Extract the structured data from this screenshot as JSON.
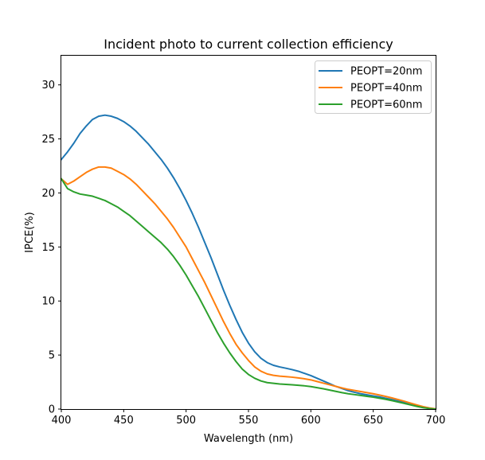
{
  "chart_data": {
    "type": "line",
    "title": "Incident photo to current collection efficiency",
    "xlabel": "Wavelength (nm)",
    "ylabel": "IPCE(%)",
    "xlim": [
      400,
      700
    ],
    "ylim": [
      0,
      32.7
    ],
    "xticks": [
      400,
      450,
      500,
      550,
      600,
      650,
      700
    ],
    "yticks": [
      0,
      5,
      10,
      15,
      20,
      25,
      30
    ],
    "grid": false,
    "legend_position": "upper right",
    "series": [
      {
        "name": "PEOPT=20nm",
        "color": "#1f77b4",
        "x": [
          400,
          405,
          410,
          415,
          420,
          425,
          430,
          435,
          440,
          445,
          450,
          455,
          460,
          465,
          470,
          475,
          480,
          485,
          490,
          495,
          500,
          505,
          510,
          515,
          520,
          525,
          530,
          535,
          540,
          545,
          550,
          555,
          560,
          565,
          570,
          575,
          580,
          585,
          590,
          595,
          600,
          605,
          610,
          615,
          620,
          625,
          630,
          635,
          640,
          645,
          650,
          655,
          660,
          665,
          670,
          675,
          680,
          685,
          690,
          695,
          700
        ],
        "y": [
          23.1,
          23.8,
          24.6,
          25.5,
          26.2,
          26.8,
          27.1,
          27.2,
          27.1,
          26.9,
          26.6,
          26.2,
          25.7,
          25.1,
          24.5,
          23.8,
          23.1,
          22.3,
          21.4,
          20.4,
          19.3,
          18.1,
          16.8,
          15.4,
          14.0,
          12.5,
          11.0,
          9.6,
          8.3,
          7.1,
          6.1,
          5.3,
          4.7,
          4.3,
          4.05,
          3.9,
          3.78,
          3.65,
          3.5,
          3.3,
          3.1,
          2.85,
          2.6,
          2.35,
          2.1,
          1.9,
          1.7,
          1.55,
          1.42,
          1.32,
          1.22,
          1.12,
          1.0,
          0.88,
          0.74,
          0.6,
          0.45,
          0.3,
          0.16,
          0.06,
          0.0
        ]
      },
      {
        "name": "PEOPT=40nm",
        "color": "#ff7f0e",
        "x": [
          400,
          405,
          410,
          415,
          420,
          425,
          430,
          435,
          440,
          445,
          450,
          455,
          460,
          465,
          470,
          475,
          480,
          485,
          490,
          495,
          500,
          505,
          510,
          515,
          520,
          525,
          530,
          535,
          540,
          545,
          550,
          555,
          560,
          565,
          570,
          575,
          580,
          585,
          590,
          595,
          600,
          605,
          610,
          615,
          620,
          625,
          630,
          635,
          640,
          645,
          650,
          655,
          660,
          665,
          670,
          675,
          680,
          685,
          690,
          695,
          700
        ],
        "y": [
          21.3,
          20.8,
          21.1,
          21.5,
          21.9,
          22.2,
          22.4,
          22.4,
          22.3,
          22.0,
          21.7,
          21.3,
          20.8,
          20.2,
          19.6,
          19.0,
          18.3,
          17.6,
          16.8,
          15.9,
          15.0,
          13.9,
          12.8,
          11.7,
          10.5,
          9.3,
          8.1,
          7.0,
          6.0,
          5.2,
          4.5,
          3.9,
          3.5,
          3.25,
          3.12,
          3.05,
          3.0,
          2.95,
          2.88,
          2.8,
          2.7,
          2.55,
          2.4,
          2.25,
          2.1,
          1.95,
          1.82,
          1.72,
          1.62,
          1.52,
          1.42,
          1.3,
          1.17,
          1.03,
          0.88,
          0.72,
          0.55,
          0.38,
          0.22,
          0.1,
          0.02
        ]
      },
      {
        "name": "PEOPT=60nm",
        "color": "#2ca02c",
        "x": [
          400,
          405,
          410,
          415,
          420,
          425,
          430,
          435,
          440,
          445,
          450,
          455,
          460,
          465,
          470,
          475,
          480,
          485,
          490,
          495,
          500,
          505,
          510,
          515,
          520,
          525,
          530,
          535,
          540,
          545,
          550,
          555,
          560,
          565,
          570,
          575,
          580,
          585,
          590,
          595,
          600,
          605,
          610,
          615,
          620,
          625,
          630,
          635,
          640,
          645,
          650,
          655,
          660,
          665,
          670,
          675,
          680,
          685,
          690,
          695,
          700
        ],
        "y": [
          21.3,
          20.4,
          20.1,
          19.9,
          19.8,
          19.7,
          19.5,
          19.3,
          19.0,
          18.7,
          18.3,
          17.9,
          17.4,
          16.9,
          16.4,
          15.9,
          15.4,
          14.8,
          14.1,
          13.3,
          12.4,
          11.4,
          10.4,
          9.3,
          8.2,
          7.1,
          6.1,
          5.2,
          4.4,
          3.7,
          3.2,
          2.85,
          2.6,
          2.45,
          2.38,
          2.32,
          2.28,
          2.25,
          2.2,
          2.15,
          2.08,
          1.98,
          1.88,
          1.76,
          1.64,
          1.52,
          1.42,
          1.34,
          1.26,
          1.18,
          1.1,
          1.0,
          0.9,
          0.78,
          0.65,
          0.52,
          0.38,
          0.25,
          0.13,
          0.05,
          0.0
        ]
      }
    ]
  }
}
